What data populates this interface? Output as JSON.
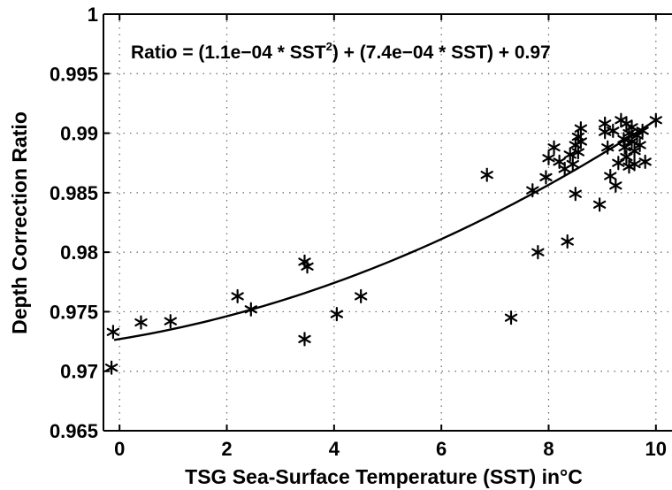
{
  "chart_data": {
    "type": "scatter",
    "xlabel": "TSG Sea-Surface Temperature (SST) in°C",
    "ylabel": "Depth Correction Ratio",
    "annotation": {
      "pre": "Ratio = (1.1e−04 * SST",
      "sup": "2",
      "post": ") + (7.4e−04 * SST) + 0.97"
    },
    "xlim": [
      -0.3,
      10.3
    ],
    "ylim": [
      0.965,
      1.0
    ],
    "xticks": [
      0,
      2,
      4,
      6,
      8,
      10
    ],
    "xtick_labels": [
      "0",
      "2",
      "4",
      "6",
      "8",
      "10"
    ],
    "yticks": [
      0.965,
      0.97,
      0.975,
      0.98,
      0.985,
      0.99,
      0.995,
      1.0
    ],
    "ytick_labels": [
      "0.965",
      "0.97",
      "0.975",
      "0.98",
      "0.985",
      "0.99",
      "0.995",
      "1"
    ],
    "grid": true,
    "marker": "asterisk",
    "fit": {
      "a": 0.00011,
      "b": 0.00074,
      "c": 0.9727,
      "x_range": [
        -0.1,
        10.0
      ]
    },
    "points": [
      {
        "x": -0.15,
        "y": 0.9703
      },
      {
        "x": -0.12,
        "y": 0.9733
      },
      {
        "x": 0.4,
        "y": 0.9741
      },
      {
        "x": 0.95,
        "y": 0.9742
      },
      {
        "x": 2.2,
        "y": 0.9763
      },
      {
        "x": 2.45,
        "y": 0.9752
      },
      {
        "x": 3.45,
        "y": 0.9792
      },
      {
        "x": 3.5,
        "y": 0.9788
      },
      {
        "x": 3.45,
        "y": 0.9727
      },
      {
        "x": 4.05,
        "y": 0.9748
      },
      {
        "x": 4.5,
        "y": 0.9763
      },
      {
        "x": 6.85,
        "y": 0.9865
      },
      {
        "x": 7.3,
        "y": 0.9745
      },
      {
        "x": 7.7,
        "y": 0.9852
      },
      {
        "x": 7.8,
        "y": 0.98
      },
      {
        "x": 7.95,
        "y": 0.9863
      },
      {
        "x": 8.0,
        "y": 0.9879
      },
      {
        "x": 8.1,
        "y": 0.9888
      },
      {
        "x": 8.2,
        "y": 0.9876
      },
      {
        "x": 8.3,
        "y": 0.987
      },
      {
        "x": 8.35,
        "y": 0.9809
      },
      {
        "x": 8.4,
        "y": 0.9882
      },
      {
        "x": 8.45,
        "y": 0.9874
      },
      {
        "x": 8.5,
        "y": 0.9849
      },
      {
        "x": 8.5,
        "y": 0.989
      },
      {
        "x": 8.55,
        "y": 0.9897
      },
      {
        "x": 8.55,
        "y": 0.9884
      },
      {
        "x": 8.6,
        "y": 0.9904
      },
      {
        "x": 8.6,
        "y": 0.9893
      },
      {
        "x": 8.95,
        "y": 0.984
      },
      {
        "x": 9.05,
        "y": 0.9908
      },
      {
        "x": 9.05,
        "y": 0.9901
      },
      {
        "x": 9.1,
        "y": 0.9888
      },
      {
        "x": 9.15,
        "y": 0.9864
      },
      {
        "x": 9.2,
        "y": 0.9902
      },
      {
        "x": 9.25,
        "y": 0.9856
      },
      {
        "x": 9.3,
        "y": 0.9875
      },
      {
        "x": 9.35,
        "y": 0.9911
      },
      {
        "x": 9.4,
        "y": 0.9895
      },
      {
        "x": 9.42,
        "y": 0.9888
      },
      {
        "x": 9.45,
        "y": 0.9908
      },
      {
        "x": 9.45,
        "y": 0.988
      },
      {
        "x": 9.5,
        "y": 0.99
      },
      {
        "x": 9.5,
        "y": 0.9872
      },
      {
        "x": 9.55,
        "y": 0.9893
      },
      {
        "x": 9.55,
        "y": 0.9905
      },
      {
        "x": 9.6,
        "y": 0.9885
      },
      {
        "x": 9.6,
        "y": 0.9874
      },
      {
        "x": 9.65,
        "y": 0.9898
      },
      {
        "x": 9.7,
        "y": 0.989
      },
      {
        "x": 9.75,
        "y": 0.9902
      },
      {
        "x": 9.8,
        "y": 0.9876
      },
      {
        "x": 10.0,
        "y": 0.9911
      }
    ]
  }
}
